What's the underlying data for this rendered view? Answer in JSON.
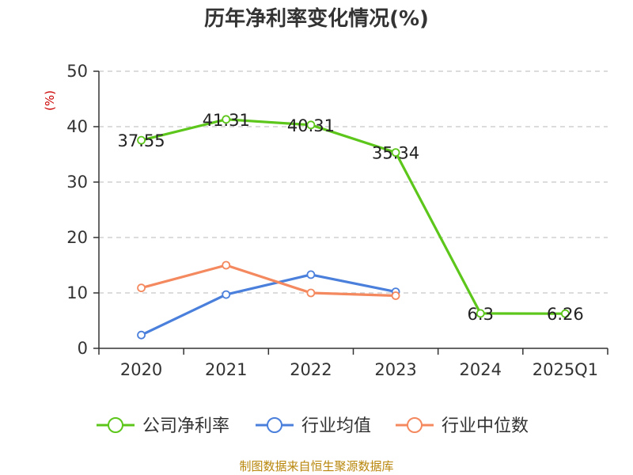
{
  "source_text": "制图数据来自恒生聚源数据库",
  "colors": {
    "company": "#5cc61b",
    "industry_avg": "#4a7fdc",
    "industry_median": "#f4895f",
    "axis": "#333333",
    "grid": "#c8c8c8"
  },
  "chart_data": {
    "type": "line",
    "title": "历年净利率变化情况(%)",
    "ylabel": "(%)",
    "xlabel": "",
    "categories": [
      "2020",
      "2021",
      "2022",
      "2023",
      "2024",
      "2025Q1"
    ],
    "ylim": [
      0,
      50
    ],
    "yticks": [
      0,
      10,
      20,
      30,
      40,
      50
    ],
    "grid": true,
    "legend_position": "bottom",
    "series": [
      {
        "name": "公司净利率",
        "color_key": "company",
        "values": [
          37.55,
          41.31,
          40.31,
          35.34,
          6.3,
          6.26
        ],
        "labels": [
          "37.55",
          "41.31",
          "40.31",
          "35.34",
          "6.3",
          "6.26"
        ]
      },
      {
        "name": "行业均值",
        "color_key": "industry_avg",
        "values": [
          2.4,
          9.7,
          13.3,
          10.2,
          null,
          null
        ]
      },
      {
        "name": "行业中位数",
        "color_key": "industry_median",
        "values": [
          10.9,
          15.0,
          10.0,
          9.5,
          null,
          null
        ]
      }
    ]
  }
}
